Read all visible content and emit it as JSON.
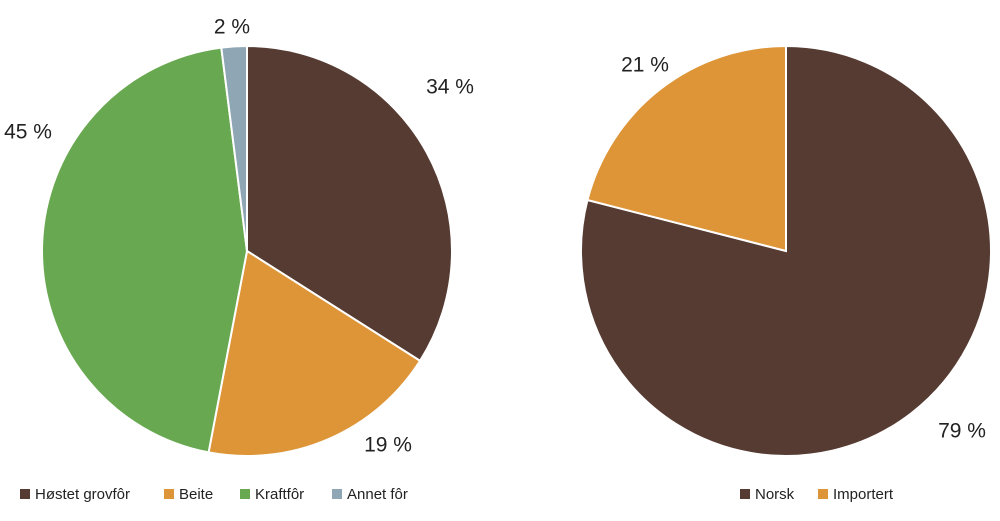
{
  "chart_data": [
    {
      "type": "pie",
      "categories": [
        "Høstet grovfôr",
        "Beite",
        "Kraftfôr",
        "Annet fôr"
      ],
      "values": [
        34,
        19,
        45,
        2
      ],
      "value_labels": [
        "34 %",
        "19 %",
        "45 %",
        "2 %"
      ],
      "colors": [
        "#563b32",
        "#dd9538",
        "#68a850",
        "#8fa6b4"
      ],
      "legend": "bottom"
    },
    {
      "type": "pie",
      "categories": [
        "Norsk",
        "Importert"
      ],
      "values": [
        79,
        21
      ],
      "value_labels": [
        "79 %",
        "21 %"
      ],
      "colors": [
        "#563b32",
        "#dd9538"
      ],
      "legend": "bottom"
    }
  ]
}
